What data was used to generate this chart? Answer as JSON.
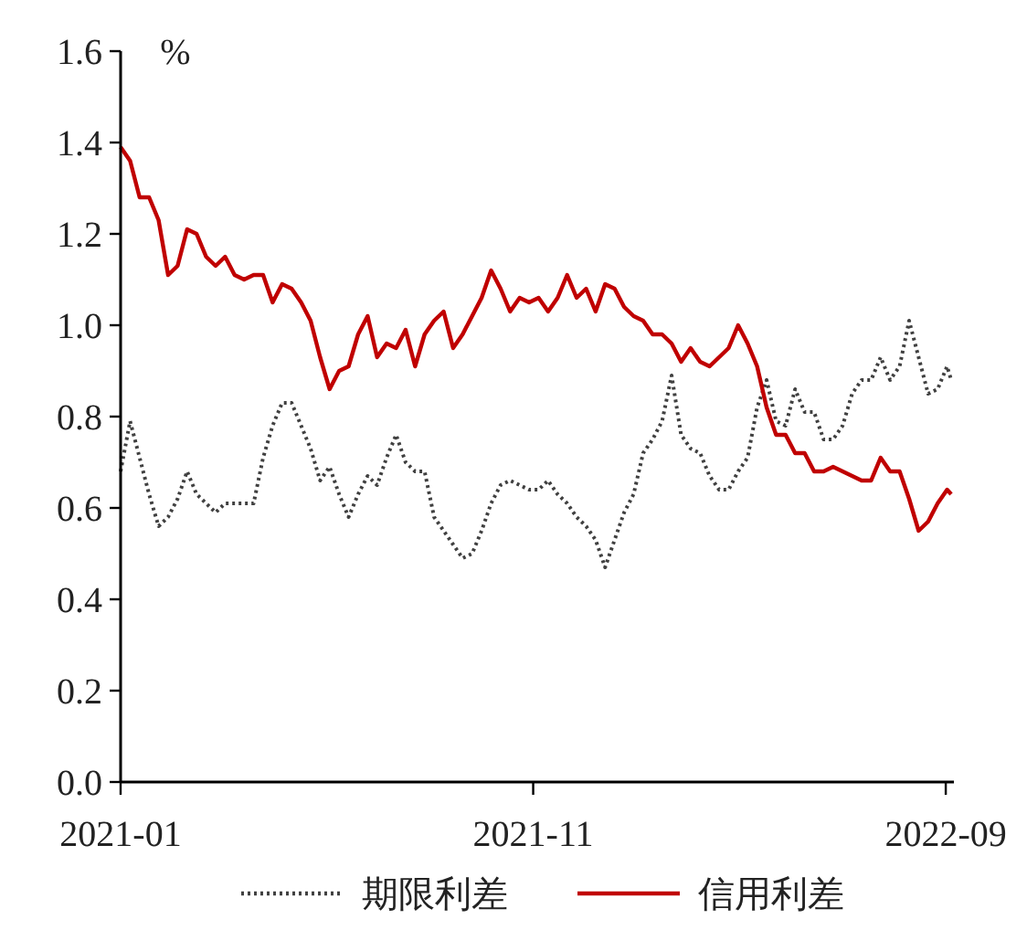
{
  "chart_data": {
    "type": "line",
    "ylabel": "%",
    "legend": "bottom",
    "xlim": [
      "2021-01-01",
      "2022-09-07"
    ],
    "xticks": [
      {
        "value": "2021-01-01",
        "label": "2021-01"
      },
      {
        "value": "2021-11-01",
        "label": "2021-11"
      },
      {
        "value": "2022-09-01",
        "label": "2022-09"
      }
    ],
    "ylim": [
      0,
      1.6
    ],
    "yticks": [
      {
        "value": 0,
        "label": "0.0"
      },
      0.2,
      0.4,
      0.6,
      0.8,
      {
        "value": 1,
        "label": "1.0"
      },
      1.2,
      1.4,
      1.6
    ],
    "x": [
      "2021-01-01",
      "2021-01-08",
      "2021-01-15",
      "2021-01-22",
      "2021-01-29",
      "2021-02-05",
      "2021-02-12",
      "2021-02-19",
      "2021-02-26",
      "2021-03-05",
      "2021-03-12",
      "2021-03-19",
      "2021-03-26",
      "2021-04-02",
      "2021-04-09",
      "2021-04-16",
      "2021-04-23",
      "2021-04-30",
      "2021-05-07",
      "2021-05-14",
      "2021-05-21",
      "2021-05-28",
      "2021-06-04",
      "2021-06-11",
      "2021-06-18",
      "2021-06-25",
      "2021-07-02",
      "2021-07-09",
      "2021-07-16",
      "2021-07-23",
      "2021-07-30",
      "2021-08-06",
      "2021-08-13",
      "2021-08-20",
      "2021-08-27",
      "2021-09-03",
      "2021-09-10",
      "2021-09-17",
      "2021-09-24",
      "2021-10-01",
      "2021-10-08",
      "2021-10-15",
      "2021-10-22",
      "2021-10-29",
      "2021-11-05",
      "2021-11-12",
      "2021-11-19",
      "2021-11-26",
      "2021-12-03",
      "2021-12-10",
      "2021-12-17",
      "2021-12-24",
      "2021-12-31",
      "2022-01-07",
      "2022-01-14",
      "2022-01-21",
      "2022-01-28",
      "2022-02-04",
      "2022-02-11",
      "2022-02-18",
      "2022-02-25",
      "2022-03-04",
      "2022-03-11",
      "2022-03-18",
      "2022-03-25",
      "2022-04-01",
      "2022-04-08",
      "2022-04-15",
      "2022-04-22",
      "2022-04-29",
      "2022-05-06",
      "2022-05-13",
      "2022-05-20",
      "2022-05-27",
      "2022-06-03",
      "2022-06-10",
      "2022-06-17",
      "2022-06-24",
      "2022-07-01",
      "2022-07-08",
      "2022-07-15",
      "2022-07-22",
      "2022-07-29",
      "2022-08-05",
      "2022-08-12",
      "2022-08-19",
      "2022-08-26",
      "2022-09-02",
      "2022-09-05"
    ],
    "series": [
      {
        "name": "期限利差",
        "color": "#404040",
        "line_style": "dotted",
        "values": [
          0.68,
          0.79,
          0.71,
          0.63,
          0.56,
          0.58,
          0.62,
          0.68,
          0.63,
          0.61,
          0.59,
          0.61,
          0.61,
          0.61,
          0.61,
          0.71,
          0.78,
          0.83,
          0.83,
          0.78,
          0.73,
          0.66,
          0.69,
          0.63,
          0.58,
          0.63,
          0.67,
          0.65,
          0.71,
          0.76,
          0.7,
          0.68,
          0.68,
          0.58,
          0.55,
          0.52,
          0.49,
          0.5,
          0.55,
          0.61,
          0.65,
          0.66,
          0.65,
          0.64,
          0.64,
          0.66,
          0.63,
          0.61,
          0.58,
          0.56,
          0.53,
          0.47,
          0.53,
          0.59,
          0.63,
          0.72,
          0.75,
          0.79,
          0.89,
          0.76,
          0.73,
          0.72,
          0.67,
          0.64,
          0.64,
          0.68,
          0.71,
          0.82,
          0.88,
          0.79,
          0.78,
          0.86,
          0.81,
          0.81,
          0.75,
          0.75,
          0.78,
          0.85,
          0.88,
          0.88,
          0.93,
          0.88,
          0.91,
          1.01,
          0.93,
          0.85,
          0.86,
          0.91,
          0.88
        ]
      },
      {
        "name": "信用利差",
        "color": "#c00000",
        "line_style": "solid",
        "values": [
          1.39,
          1.36,
          1.28,
          1.28,
          1.23,
          1.11,
          1.13,
          1.21,
          1.2,
          1.15,
          1.13,
          1.15,
          1.11,
          1.1,
          1.11,
          1.11,
          1.05,
          1.09,
          1.08,
          1.05,
          1.01,
          0.93,
          0.86,
          0.9,
          0.91,
          0.98,
          1.02,
          0.93,
          0.96,
          0.95,
          0.99,
          0.91,
          0.98,
          1.01,
          1.03,
          0.95,
          0.98,
          1.02,
          1.06,
          1.12,
          1.08,
          1.03,
          1.06,
          1.05,
          1.06,
          1.03,
          1.06,
          1.11,
          1.06,
          1.08,
          1.03,
          1.09,
          1.08,
          1.04,
          1.02,
          1.01,
          0.98,
          0.98,
          0.96,
          0.92,
          0.95,
          0.92,
          0.91,
          0.93,
          0.95,
          1.0,
          0.96,
          0.91,
          0.82,
          0.76,
          0.76,
          0.72,
          0.72,
          0.68,
          0.68,
          0.69,
          0.68,
          0.67,
          0.66,
          0.66,
          0.71,
          0.68,
          0.68,
          0.62,
          0.55,
          0.57,
          0.61,
          0.64,
          0.63
        ]
      }
    ]
  }
}
